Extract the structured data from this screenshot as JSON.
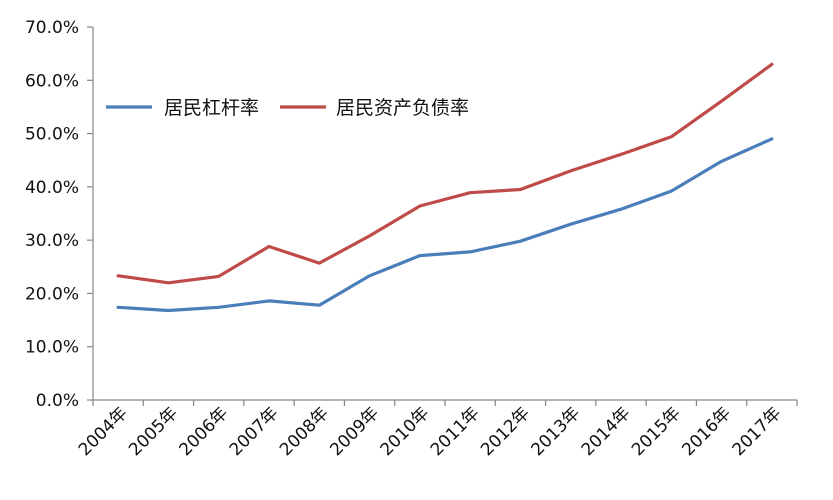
{
  "chart_data": {
    "type": "line",
    "title": "",
    "xlabel": "",
    "ylabel": "",
    "categories": [
      "2004年",
      "2005年",
      "2006年",
      "2007年",
      "2008年",
      "2009年",
      "2010年",
      "2011年",
      "2012年",
      "2013年",
      "2014年",
      "2015年",
      "2016年",
      "2017年"
    ],
    "ylim": [
      0,
      70
    ],
    "yticks": [
      "0.0%",
      "10.0%",
      "20.0%",
      "30.0%",
      "40.0%",
      "50.0%",
      "60.0%",
      "70.0%"
    ],
    "grid": false,
    "legend_position": "top-left",
    "series": [
      {
        "name": "居民杠杆率",
        "color": "#4a7ebb",
        "values": [
          17.4,
          16.8,
          17.4,
          18.6,
          17.8,
          23.3,
          27.1,
          27.8,
          29.8,
          33.0,
          35.8,
          39.2,
          44.8,
          49.0
        ]
      },
      {
        "name": "居民资产负债率",
        "color": "#be4b48",
        "values": [
          23.3,
          22.0,
          23.2,
          28.8,
          25.7,
          30.8,
          36.4,
          38.9,
          39.5,
          43.0,
          46.1,
          49.4,
          56.1,
          63.0
        ]
      }
    ]
  }
}
